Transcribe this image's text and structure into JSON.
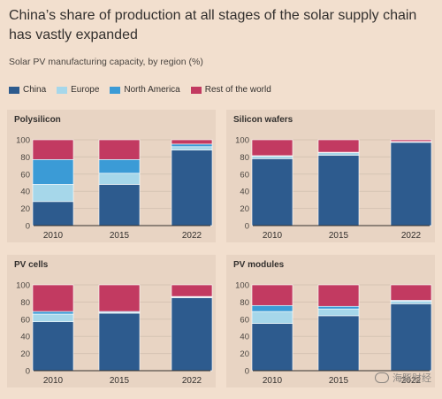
{
  "header": {
    "title": "China’s share of production at all stages of the solar supply chain has vastly expanded",
    "subtitle": "Solar PV manufacturing capacity, by region (%)"
  },
  "legend": [
    {
      "label": "China",
      "color": "#2d5b8e"
    },
    {
      "label": "Europe",
      "color": "#a6d7ea"
    },
    {
      "label": "North America",
      "color": "#3b9bd6"
    },
    {
      "label": "Rest of the world",
      "color": "#c23a61"
    }
  ],
  "watermark": "海豚财经",
  "chart_data": [
    {
      "type": "bar",
      "stacked": true,
      "title": "Polysilicon",
      "categories": [
        "2010",
        "2015",
        "2022"
      ],
      "ylim": [
        0,
        100
      ],
      "yticks": [
        0,
        20,
        40,
        60,
        80,
        100
      ],
      "series": [
        {
          "name": "China",
          "values": [
            28,
            48,
            88
          ]
        },
        {
          "name": "Europe",
          "values": [
            20,
            13,
            4
          ]
        },
        {
          "name": "North America",
          "values": [
            29,
            16,
            3
          ]
        },
        {
          "name": "Rest of the world",
          "values": [
            23,
            23,
            5
          ]
        }
      ]
    },
    {
      "type": "bar",
      "stacked": true,
      "title": "Silicon wafers",
      "categories": [
        "2010",
        "2015",
        "2022"
      ],
      "ylim": [
        0,
        100
      ],
      "yticks": [
        0,
        20,
        40,
        60,
        80,
        100
      ],
      "series": [
        {
          "name": "China",
          "values": [
            78,
            82,
            97
          ]
        },
        {
          "name": "Europe",
          "values": [
            3,
            3,
            0.5
          ]
        },
        {
          "name": "North America",
          "values": [
            0.5,
            0.5,
            0.5
          ]
        },
        {
          "name": "Rest of the world",
          "values": [
            18.5,
            14.5,
            2
          ]
        }
      ]
    },
    {
      "type": "bar",
      "stacked": true,
      "title": "PV cells",
      "categories": [
        "2010",
        "2015",
        "2022"
      ],
      "ylim": [
        0,
        100
      ],
      "yticks": [
        0,
        20,
        40,
        60,
        80,
        100
      ],
      "series": [
        {
          "name": "China",
          "values": [
            57,
            67,
            85
          ]
        },
        {
          "name": "Europe",
          "values": [
            9,
            1,
            1
          ]
        },
        {
          "name": "North America",
          "values": [
            3,
            1,
            0.5
          ]
        },
        {
          "name": "Rest of the world",
          "values": [
            31,
            31,
            13.5
          ]
        }
      ]
    },
    {
      "type": "bar",
      "stacked": true,
      "title": "PV modules",
      "categories": [
        "2010",
        "2015",
        "2022"
      ],
      "ylim": [
        0,
        100
      ],
      "yticks": [
        0,
        20,
        40,
        60,
        80,
        100
      ],
      "series": [
        {
          "name": "China",
          "values": [
            55,
            64,
            78
          ]
        },
        {
          "name": "Europe",
          "values": [
            14,
            8,
            3
          ]
        },
        {
          "name": "North America",
          "values": [
            7,
            3,
            1
          ]
        },
        {
          "name": "Rest of the world",
          "values": [
            24,
            25,
            18
          ]
        }
      ]
    }
  ]
}
